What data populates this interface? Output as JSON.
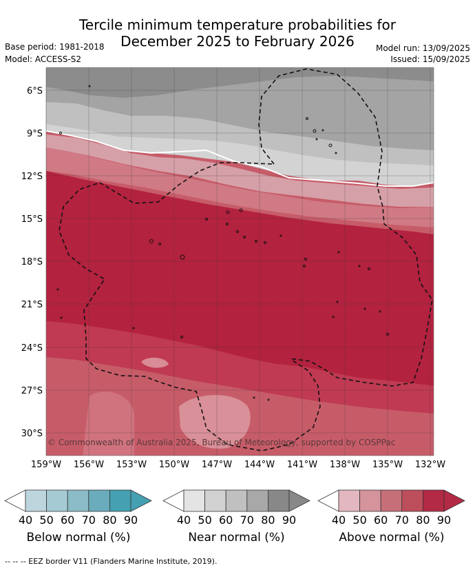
{
  "title": {
    "line1": "Tercile minimum temperature probabilities for",
    "line2": "December 2025 to February 2026"
  },
  "meta": {
    "base_period": "Base period: 1981-2018",
    "model": "Model: ACCESS-S2",
    "model_run": "Model run: 13/09/2025",
    "issued": "Issued: 15/09/2025"
  },
  "map": {
    "lat_labels": [
      "6°S",
      "9°S",
      "12°S",
      "15°S",
      "18°S",
      "21°S",
      "24°S",
      "27°S",
      "30°S"
    ],
    "lon_labels": [
      "159°W",
      "156°W",
      "153°W",
      "150°W",
      "147°W",
      "144°W",
      "141°W",
      "138°W",
      "135°W",
      "132°W"
    ],
    "copyright": "© Commonwealth of Australia 2025, Bureau of Meteorology, supported by COSPPac"
  },
  "colorbars": [
    {
      "label": "Below normal (%)",
      "ticks": [
        "40",
        "50",
        "60",
        "70",
        "80",
        "90"
      ],
      "colors": [
        "#ffffff",
        "#bdd6de",
        "#a6cad3",
        "#8bbcc8",
        "#6aacbb",
        "#45a0b2"
      ]
    },
    {
      "label": "Near normal (%)",
      "ticks": [
        "40",
        "50",
        "60",
        "70",
        "80",
        "90"
      ],
      "colors": [
        "#ffffff",
        "#e4e4e4",
        "#d2d2d2",
        "#c0c0c0",
        "#a8a8a8",
        "#888888"
      ]
    },
    {
      "label": "Above normal (%)",
      "ticks": [
        "40",
        "50",
        "60",
        "70",
        "80",
        "90"
      ],
      "colors": [
        "#ffffff",
        "#e3b7bf",
        "#d5939c",
        "#c66f79",
        "#bd4e5c",
        "#b22a45"
      ]
    }
  ],
  "footnote": "-- -- -- EEZ border V11 (Flanders Marine Institute, 2019)."
}
